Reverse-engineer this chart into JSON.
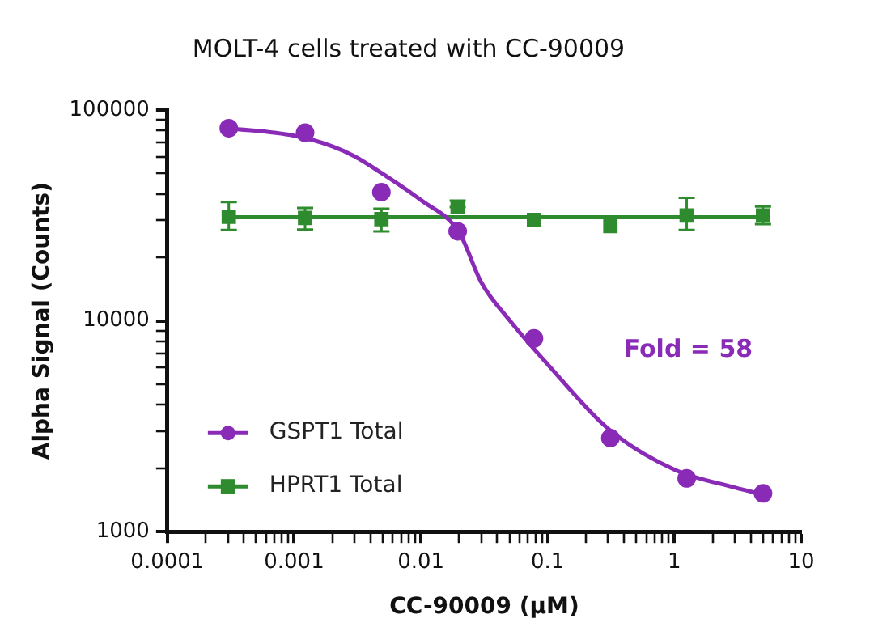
{
  "chart_data": {
    "type": "scatter",
    "title": "MOLT-4 cells treated with CC-90009",
    "xlabel": "CC-90009 (µM)",
    "ylabel": "Alpha Signal (Counts)",
    "log": "xy",
    "grid": false,
    "legend": "bottom left",
    "xlim": [
      0.0001,
      10
    ],
    "ylim": [
      1000,
      100000
    ],
    "xticks": [
      0.0001,
      {
        "value": 0.0002,
        "label": null
      },
      {
        "value": 0.0003,
        "label": null
      },
      {
        "value": 0.0004,
        "label": null
      },
      {
        "value": 0.0005,
        "label": null
      },
      {
        "value": 0.0006,
        "label": null
      },
      {
        "value": 0.0007,
        "label": null
      },
      {
        "value": 0.0008,
        "label": null
      },
      {
        "value": 0.0009,
        "label": null
      },
      0.001,
      {
        "value": 0.002,
        "label": null
      },
      {
        "value": 0.003,
        "label": null
      },
      {
        "value": 0.004,
        "label": null
      },
      {
        "value": 0.005,
        "label": null
      },
      {
        "value": 0.006,
        "label": null
      },
      {
        "value": 0.007,
        "label": null
      },
      {
        "value": 0.008,
        "label": null
      },
      {
        "value": 0.009,
        "label": null
      },
      0.01,
      {
        "value": 0.02,
        "label": null
      },
      {
        "value": 0.03,
        "label": null
      },
      {
        "value": 0.04,
        "label": null
      },
      {
        "value": 0.05,
        "label": null
      },
      {
        "value": 0.06,
        "label": null
      },
      {
        "value": 0.07,
        "label": null
      },
      {
        "value": 0.08,
        "label": null
      },
      {
        "value": 0.09,
        "label": null
      },
      0.1,
      {
        "value": 0.2,
        "label": null
      },
      {
        "value": 0.3,
        "label": null
      },
      {
        "value": 0.4,
        "label": null
      },
      {
        "value": 0.5,
        "label": null
      },
      {
        "value": 0.6,
        "label": null
      },
      {
        "value": 0.7,
        "label": null
      },
      {
        "value": 0.8,
        "label": null
      },
      {
        "value": 0.9,
        "label": null
      },
      1,
      {
        "value": 2,
        "label": null
      },
      {
        "value": 3,
        "label": null
      },
      {
        "value": 4,
        "label": null
      },
      {
        "value": 5,
        "label": null
      },
      {
        "value": 6,
        "label": null
      },
      {
        "value": 7,
        "label": null
      },
      {
        "value": 8,
        "label": null
      },
      {
        "value": 9,
        "label": null
      },
      10
    ],
    "yticks": [
      1000,
      {
        "value": 2000,
        "label": null
      },
      {
        "value": 3000,
        "label": null
      },
      {
        "value": 4000,
        "label": null
      },
      {
        "value": 5000,
        "label": null
      },
      {
        "value": 6000,
        "label": null
      },
      {
        "value": 7000,
        "label": null
      },
      {
        "value": 8000,
        "label": null
      },
      {
        "value": 9000,
        "label": null
      },
      10000,
      {
        "value": 20000,
        "label": null
      },
      {
        "value": 30000,
        "label": null
      },
      {
        "value": 40000,
        "label": null
      },
      {
        "value": 50000,
        "label": null
      },
      {
        "value": 60000,
        "label": null
      },
      {
        "value": 70000,
        "label": null
      },
      {
        "value": 80000,
        "label": null
      },
      {
        "value": 90000,
        "label": null
      },
      100000
    ],
    "annotations": [
      "Fold = 58"
    ],
    "x": [
      0.000305,
      0.00122,
      0.00488,
      0.0195,
      0.078,
      0.3125,
      1.25,
      5
    ],
    "series": [
      {
        "name": "GSPT1 Total",
        "marker": "circle",
        "color": "#8a2bb8",
        "values": [
          82000,
          78000,
          40800,
          26600,
          8250,
          2780,
          1790,
          1520
        ]
      },
      {
        "name": "HPRT1 Total",
        "marker": "square",
        "color": "#2e8b2e",
        "values": [
          31200,
          30800,
          30400,
          34600,
          30100,
          28200,
          31600,
          31600
        ],
        "errors": [
          [
            27000,
            36600
          ],
          [
            27100,
            34300
          ],
          [
            26600,
            34000
          ],
          [
            34600,
            37200
          ],
          null,
          null,
          [
            27000,
            38300
          ],
          [
            28800,
            34900
          ]
        ]
      },
      {
        "type": "line",
        "color": "#8a2bb8",
        "x": [
          0.000305,
          0.001,
          0.002,
          0.003,
          0.005,
          0.01,
          0.02,
          0.03,
          0.05,
          0.1,
          0.3,
          1,
          3,
          5
        ],
        "values": [
          82000,
          75500,
          67300,
          60300,
          49800,
          37400,
          26300,
          15200,
          10070,
          6220,
          3080,
          1970,
          1620,
          1500
        ]
      },
      {
        "type": "line",
        "color": "#2e8b2e",
        "x": [
          0.000305,
          5
        ],
        "values": [
          31000,
          31000
        ]
      }
    ]
  }
}
